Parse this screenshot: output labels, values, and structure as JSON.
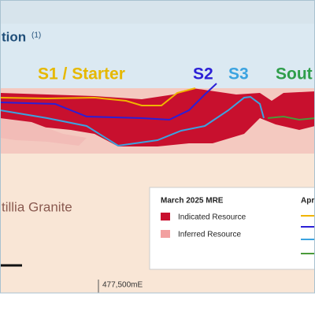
{
  "header": {
    "title": "tion",
    "title_note": "(1)"
  },
  "pits": [
    "S1 / Starter",
    "S2",
    "S3",
    "Sout"
  ],
  "geology_label": "tillia Granite",
  "legend": {
    "title": "March 2025 MRE",
    "items": [
      "Indicated Resource",
      "Inferred Resource"
    ],
    "second_title": "Apr"
  },
  "easting_label": "477,500mE"
}
